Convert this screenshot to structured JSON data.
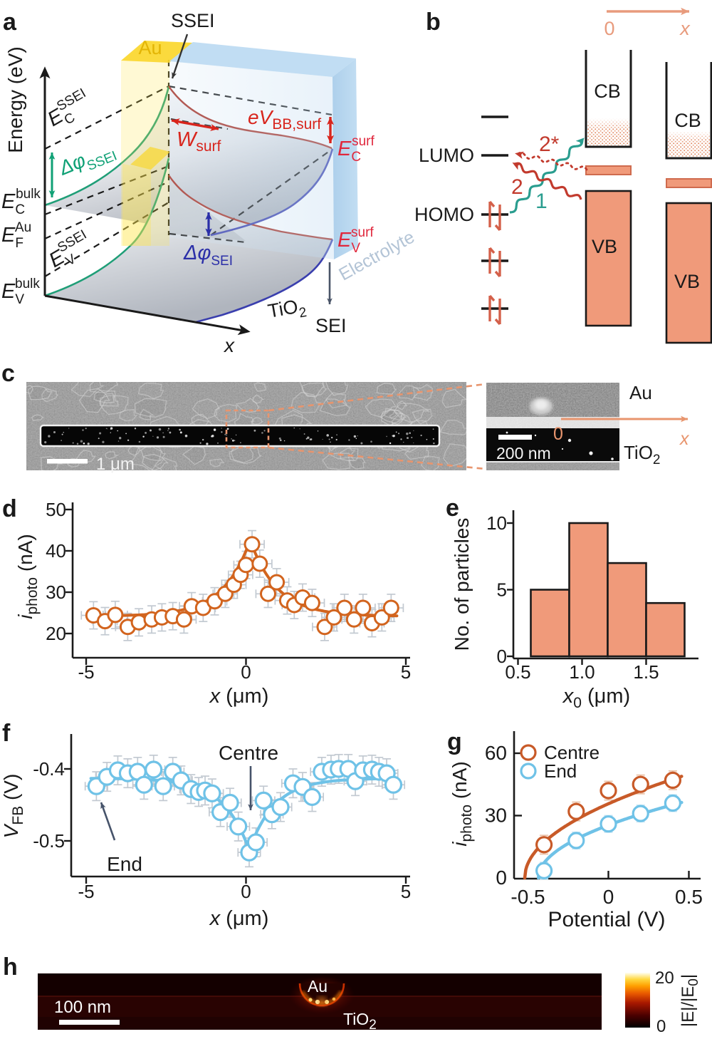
{
  "panel_letters": {
    "a": "a",
    "b": "b",
    "c": "c",
    "d": "d",
    "e": "e",
    "f": "f",
    "g": "g",
    "h": "h"
  },
  "colors": {
    "salmon_fill": "#f09a7a",
    "salmon_arrow": "#e89b7d",
    "orange_d": "#d2641e",
    "orange_g": "#c85a28",
    "blue_f": "#6fc2e7",
    "teal": "#2a9d8f",
    "red_wavy": "#c23a2d",
    "green_a": "#109d74",
    "red_arrow": "#d8251d",
    "red_surf": "#e0273c",
    "navy": "#2b2fa8",
    "errbar": "#c2c9d1",
    "gold": "#e3b505",
    "electrolyte_text": "#b5c9da",
    "sei_arrow": "#4a5568",
    "bar_edge": "#1a1a1a"
  },
  "panel_a": {
    "axis_y_label": "Energy (eV)",
    "axis_x_label": "x",
    "labels": {
      "ssei": "SSEI",
      "au": "Au",
      "sei": "SEI",
      "tio2": {
        "base": "TiO",
        "sub": "2"
      },
      "electrolyte": "Electrolyte",
      "ec_ssei": {
        "base": "E",
        "sub": "C",
        "sup": "SSEI"
      },
      "dphi_ssei": {
        "base": "Δφ",
        "sub": "SSEI"
      },
      "ec_bulk": {
        "base": "E",
        "sub": "C",
        "sup": "bulk"
      },
      "ef_au": {
        "base": "E",
        "sub": "F",
        "sup": "Au"
      },
      "ev_ssei": {
        "base": "E",
        "sub": "V",
        "sup": "SSEI"
      },
      "ev_bulk": {
        "base": "E",
        "sub": "V",
        "sup": "bulk"
      },
      "w_surf": {
        "base": "W",
        "sub": "surf"
      },
      "ev_bb_surf": {
        "base": "eV",
        "sub": "BB,surf"
      },
      "ec_surf": {
        "base": "E",
        "sub": "C",
        "sup": "surf"
      },
      "ev_surf": {
        "base": "E",
        "sub": "V",
        "sup": "surf"
      },
      "dphi_sei": {
        "base": "Δφ",
        "sub": "SEI"
      }
    }
  },
  "panel_b": {
    "labels": {
      "zero": "0",
      "x": "x",
      "lumo": "LUMO",
      "homo": "HOMO",
      "cb_left": "CB",
      "vb_left": "VB",
      "cb_right": "CB",
      "vb_right": "VB",
      "proc_1": "1",
      "proc_2": "2",
      "proc_2star": "2*"
    }
  },
  "panel_c": {
    "scalebar_main": "1 μm",
    "scalebar_inset": "200 nm",
    "au": "Au",
    "tio2": {
      "base": "TiO",
      "sub": "2"
    },
    "zero": "0",
    "x": "x"
  },
  "panel_h": {
    "au": "Au",
    "tio2": {
      "base": "TiO",
      "sub": "2"
    },
    "scalebar": "100 nm",
    "cbar_max": "20",
    "cbar_min": "0",
    "cbar_label": {
      "pre": "|E|/|E",
      "sub": "0",
      "post": "|"
    }
  },
  "chart_data": [
    {
      "id": "d",
      "type": "scatter",
      "xlabel": {
        "base": "x",
        "unit": " (μm)"
      },
      "ylabel": {
        "base": "i",
        "sub": "photo",
        "unit": " (nA)"
      },
      "xlim": [
        -5.4,
        5.15
      ],
      "ylim": [
        14,
        51.5
      ],
      "xticks": [
        -5,
        0,
        5
      ],
      "xtick_labels": [
        "-5",
        "0",
        "5"
      ],
      "yticks": [
        20,
        30,
        40,
        50
      ],
      "ytick_labels": [
        "20",
        "30",
        "40",
        "50"
      ],
      "xerr": 0.38,
      "yerr": 3.3,
      "series": [
        {
          "name": "iphoto",
          "color": "#d2641e",
          "points": [
            [
              -4.77,
              24.4
            ],
            [
              -4.41,
              23.0
            ],
            [
              -4.09,
              24.5
            ],
            [
              -3.7,
              21.6
            ],
            [
              -3.35,
              22.7
            ],
            [
              -2.95,
              23.4
            ],
            [
              -2.63,
              23.9
            ],
            [
              -2.29,
              24.2
            ],
            [
              -1.94,
              23.4
            ],
            [
              -1.7,
              26.6
            ],
            [
              -1.34,
              26.2
            ],
            [
              -0.98,
              27.8
            ],
            [
              -0.65,
              29.6
            ],
            [
              -0.38,
              31.8
            ],
            [
              -0.17,
              34.2
            ],
            [
              0.0,
              36.6
            ],
            [
              0.19,
              41.6
            ],
            [
              0.43,
              36.9
            ],
            [
              0.69,
              29.6
            ],
            [
              0.96,
              32.4
            ],
            [
              1.29,
              28.0
            ],
            [
              1.51,
              26.9
            ],
            [
              1.77,
              28.7
            ],
            [
              2.07,
              27.4
            ],
            [
              2.46,
              21.6
            ],
            [
              2.75,
              23.9
            ],
            [
              3.08,
              26.2
            ],
            [
              3.38,
              23.4
            ],
            [
              3.66,
              26.2
            ],
            [
              3.94,
              22.5
            ],
            [
              4.25,
              23.9
            ],
            [
              4.54,
              26.2
            ]
          ]
        }
      ],
      "fit": {
        "shape": "exp_peak",
        "base": 24.2,
        "amp": 18.4,
        "x0": 0.13,
        "tau": 0.85,
        "color": "#d2641e"
      }
    },
    {
      "id": "e",
      "type": "bar",
      "xlabel": {
        "base": "x",
        "sub": "0",
        "unit": " (μm)"
      },
      "ylabel": "No. of particles",
      "xlim": [
        0.46,
        1.9
      ],
      "ylim": [
        0,
        11
      ],
      "bin_edges": [
        0.6,
        0.9,
        1.2,
        1.5,
        1.8
      ],
      "values": [
        5,
        10,
        7,
        4
      ],
      "xticks": [
        0.5,
        1.0,
        1.5
      ],
      "xtick_labels": [
        "0.5",
        "1.0",
        "1.5"
      ],
      "yticks": [
        0,
        5,
        10
      ],
      "ytick_labels": [
        "0",
        "5",
        "10"
      ],
      "bar_color": "#f09a7a",
      "bar_edge": "#1a1a1a"
    },
    {
      "id": "f",
      "type": "scatter",
      "xlabel": {
        "base": "x",
        "unit": " (μm)"
      },
      "ylabel": {
        "base": "V",
        "sub": "FB",
        "unit": " (V)"
      },
      "xlim": [
        -5.45,
        5.15
      ],
      "ylim": [
        -0.55,
        -0.38
      ],
      "xticks": [
        -5,
        0,
        5
      ],
      "xtick_labels": [
        "-5",
        "0",
        "5"
      ],
      "yticks": [
        -0.4,
        -0.5
      ],
      "ytick_labels": [
        "-0.4",
        "-0.5"
      ],
      "xerr": 0.35,
      "yerr": 0.02,
      "series": [
        {
          "name": "vfb",
          "color": "#6fc2e7",
          "points": [
            [
              -4.68,
              -0.424
            ],
            [
              -4.35,
              -0.411
            ],
            [
              -4.01,
              -0.402
            ],
            [
              -3.7,
              -0.406
            ],
            [
              -3.39,
              -0.404
            ],
            [
              -3.19,
              -0.422
            ],
            [
              -2.89,
              -0.401
            ],
            [
              -2.59,
              -0.424
            ],
            [
              -2.29,
              -0.404
            ],
            [
              -2.03,
              -0.416
            ],
            [
              -1.72,
              -0.428
            ],
            [
              -1.48,
              -0.432
            ],
            [
              -1.28,
              -0.43
            ],
            [
              -1.06,
              -0.434
            ],
            [
              -0.8,
              -0.46
            ],
            [
              -0.5,
              -0.447
            ],
            [
              -0.24,
              -0.48
            ],
            [
              0.1,
              -0.516
            ],
            [
              0.31,
              -0.502
            ],
            [
              0.55,
              -0.444
            ],
            [
              0.81,
              -0.463
            ],
            [
              1.08,
              -0.453
            ],
            [
              1.47,
              -0.42
            ],
            [
              1.77,
              -0.425
            ],
            [
              2.07,
              -0.439
            ],
            [
              2.37,
              -0.404
            ],
            [
              2.66,
              -0.401
            ],
            [
              2.9,
              -0.4
            ],
            [
              3.2,
              -0.4
            ],
            [
              3.42,
              -0.417
            ],
            [
              3.66,
              -0.402
            ],
            [
              3.94,
              -0.401
            ],
            [
              4.16,
              -0.404
            ],
            [
              4.4,
              -0.406
            ],
            [
              4.61,
              -0.422
            ]
          ]
        }
      ],
      "fit": {
        "shape": "exp_peak",
        "base": -0.413,
        "amp": -0.1,
        "x0": 0.1,
        "tau": 0.8,
        "color": "#6fc2e7"
      },
      "annotations": {
        "centre": "Centre",
        "end": "End"
      }
    },
    {
      "id": "g",
      "type": "scatter",
      "xlabel": "Potential (V)",
      "ylabel": {
        "base": "i",
        "sub": "photo",
        "unit": " (nA)"
      },
      "xlim": [
        -0.59,
        0.58
      ],
      "ylim": [
        0,
        71
      ],
      "xticks": [
        -0.5,
        0,
        0.5
      ],
      "xtick_labels": [
        "-0.5",
        "0",
        "0.5"
      ],
      "yticks": [
        0,
        30,
        60
      ],
      "ytick_labels": [
        "0",
        "30",
        "60"
      ],
      "legend_labels": [
        "Centre",
        "End"
      ],
      "series": [
        {
          "name": "Centre",
          "color": "#c85a28",
          "yerr": 4.5,
          "points": [
            [
              -0.4,
              16
            ],
            [
              -0.2,
              32
            ],
            [
              0.0,
              42
            ],
            [
              0.2,
              45
            ],
            [
              0.4,
              47
            ]
          ],
          "fit": {
            "shape": "sqrt",
            "v0": -0.52,
            "a": 49.5
          }
        },
        {
          "name": "End",
          "color": "#6fc2e7",
          "yerr": 4,
          "points": [
            [
              -0.4,
              3.5
            ],
            [
              -0.2,
              18
            ],
            [
              0.0,
              26
            ],
            [
              0.2,
              31
            ],
            [
              0.4,
              36
            ]
          ],
          "fit": {
            "shape": "sqrt",
            "v0": -0.435,
            "a": 38.5
          }
        }
      ]
    }
  ]
}
